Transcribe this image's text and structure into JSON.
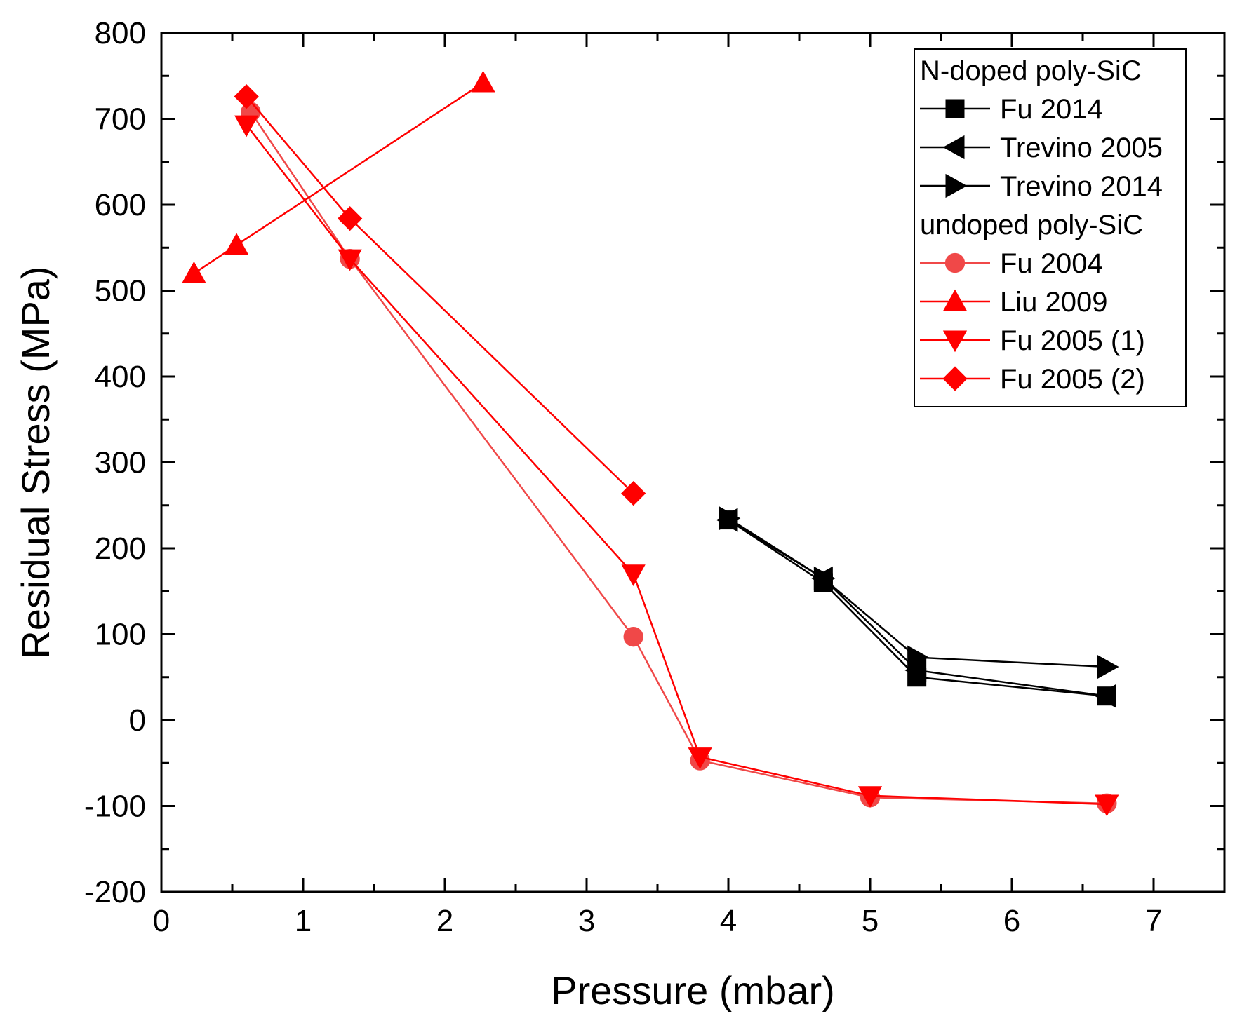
{
  "chart_data": {
    "type": "line",
    "title": "",
    "xlabel": "Pressure (mbar)",
    "ylabel": "Residual Stress (MPa)",
    "xlim": [
      0,
      7.5
    ],
    "ylim": [
      -200,
      800
    ],
    "xticks": [
      0,
      1,
      2,
      3,
      4,
      5,
      6,
      7
    ],
    "yticks": [
      -200,
      -100,
      0,
      100,
      200,
      300,
      400,
      500,
      600,
      700,
      800
    ],
    "grid": false,
    "legend_position": "top-right",
    "legend_groups": [
      {
        "heading": "N-doped poly-SiC",
        "series": [
          "Fu 2014",
          "Trevino 2005",
          "Trevino 2014"
        ]
      },
      {
        "heading": "undoped poly-SiC",
        "series": [
          "Fu 2004",
          "Liu 2009",
          "Fu 2005 (1)",
          "Fu 2005 (2)"
        ]
      }
    ],
    "series": [
      {
        "name": "Fu 2014",
        "marker": "square",
        "color": "#000000",
        "x": [
          4.0,
          4.67,
          5.33,
          6.67
        ],
        "y": [
          233,
          160,
          50,
          28
        ]
      },
      {
        "name": "Trevino 2005",
        "marker": "triangle-left",
        "color": "#000000",
        "x": [
          4.0,
          4.67,
          5.33,
          6.67
        ],
        "y": [
          233,
          165,
          58,
          28
        ]
      },
      {
        "name": "Trevino 2014",
        "marker": "triangle-right",
        "color": "#000000",
        "x": [
          4.0,
          4.67,
          5.33,
          6.67
        ],
        "y": [
          235,
          165,
          73,
          62
        ]
      },
      {
        "name": "Fu 2004",
        "marker": "circle",
        "color": "#f04848",
        "x": [
          0.63,
          1.33,
          3.33,
          3.8,
          5.0,
          6.67
        ],
        "y": [
          708,
          537,
          97,
          -47,
          -90,
          -97
        ]
      },
      {
        "name": "Liu 2009",
        "marker": "triangle-up",
        "color": "#ff0000",
        "x": [
          0.23,
          0.53,
          2.27
        ],
        "y": [
          520,
          553,
          742
        ]
      },
      {
        "name": "Fu 2005 (1)",
        "marker": "triangle-down",
        "color": "#ff0000",
        "x": [
          0.6,
          1.33,
          3.33,
          3.8,
          5.0,
          6.67
        ],
        "y": [
          693,
          537,
          170,
          -43,
          -88,
          -98
        ]
      },
      {
        "name": "Fu 2005 (2)",
        "marker": "diamond",
        "color": "#ff0000",
        "x": [
          0.6,
          1.33,
          3.33
        ],
        "y": [
          726,
          584,
          264
        ]
      }
    ]
  }
}
